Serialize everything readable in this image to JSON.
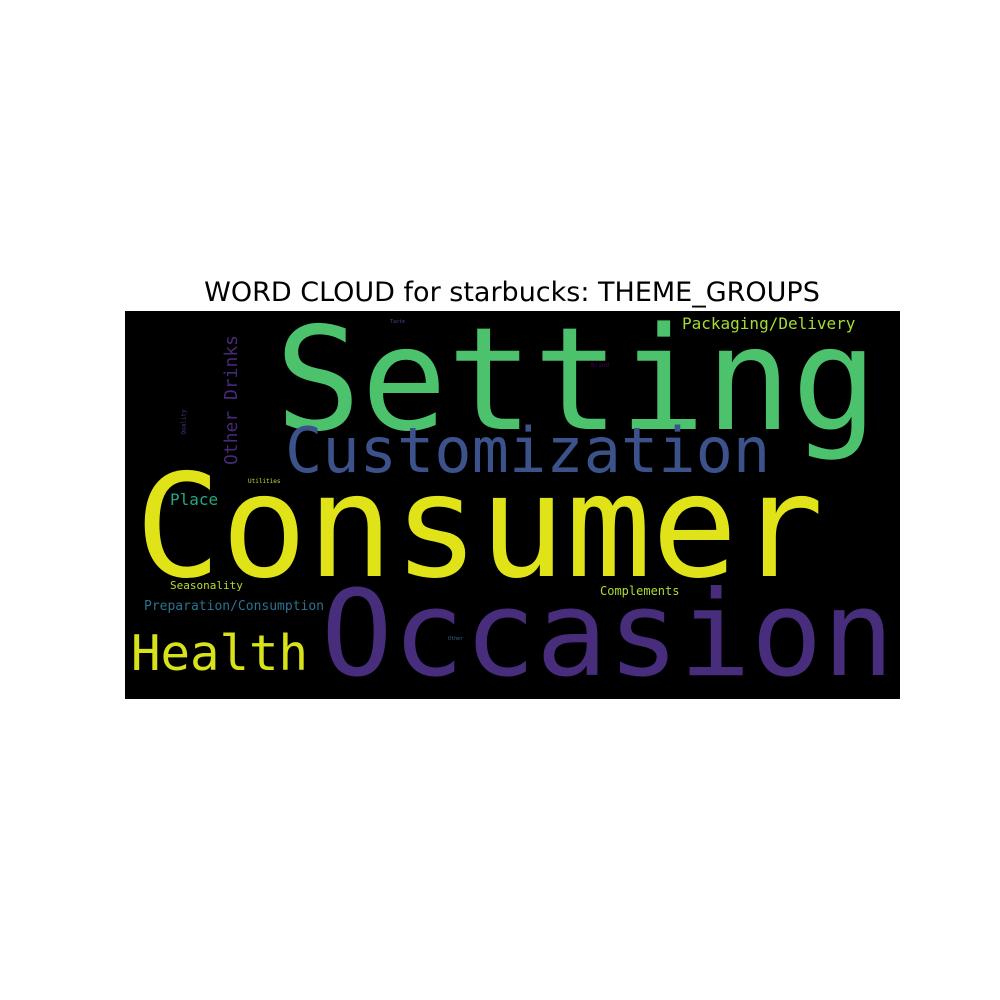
{
  "title": "WORD CLOUD for starbucks: THEME_GROUPS",
  "words": {
    "setting": {
      "text": "Setting",
      "color": "#4cc26c"
    },
    "consumer": {
      "text": "Consumer",
      "color": "#dfe318"
    },
    "occasion": {
      "text": "Occasion",
      "color": "#472d7b"
    },
    "customization": {
      "text": "Customization",
      "color": "#3b528b"
    },
    "health": {
      "text": "Health",
      "color": "#d8e219"
    },
    "packaging_delivery": {
      "text": "Packaging/Delivery",
      "color": "#a5db36"
    },
    "other_drinks": {
      "text": "Other Drinks",
      "color": "#482878"
    },
    "place": {
      "text": "Place",
      "color": "#22a884"
    },
    "seasonality": {
      "text": "Seasonality",
      "color": "#b5de2b"
    },
    "preparation_consumption": {
      "text": "Preparation/Consumption",
      "color": "#2c728e"
    },
    "complements": {
      "text": "Complements",
      "color": "#addc30"
    },
    "utilities": {
      "text": "Utilities",
      "color": "#bddf26"
    },
    "quality": {
      "text": "Quality",
      "color": "#443983"
    },
    "brand": {
      "text": "Brand",
      "color": "#440154"
    },
    "taste": {
      "text": "Taste",
      "color": "#3e4989"
    },
    "other": {
      "text": "Other",
      "color": "#31688e"
    }
  }
}
